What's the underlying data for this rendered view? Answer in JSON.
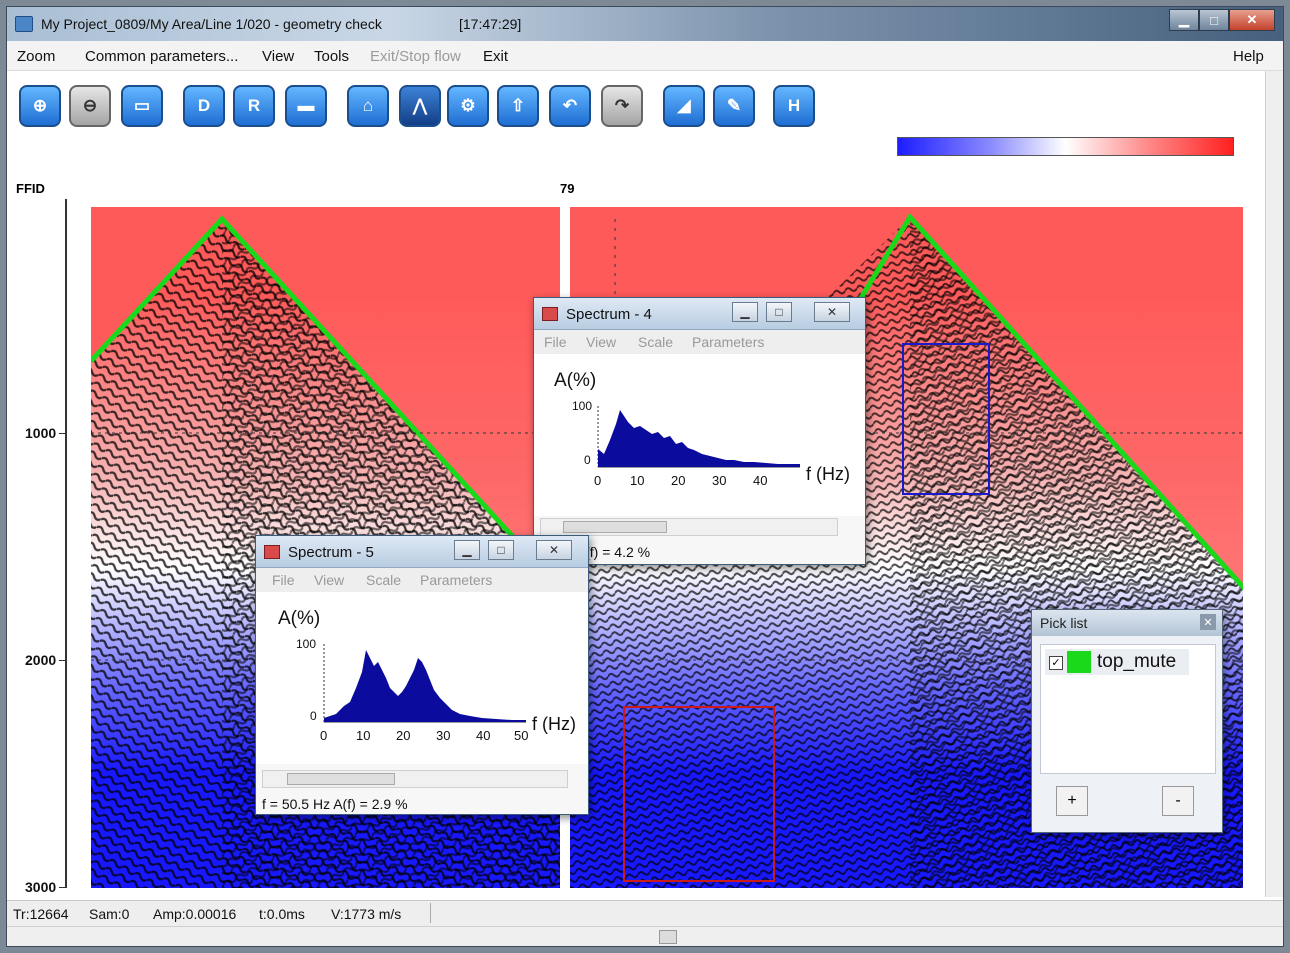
{
  "window": {
    "title": "My Project_0809/My Area/Line 1/020 - geometry check",
    "time": "[17:47:29]",
    "controls": {
      "minimize": "▁",
      "maximize": "□",
      "close": "✕"
    }
  },
  "menu": {
    "zoom": "Zoom",
    "common_parameters": "Common parameters...",
    "view": "View",
    "tools": "Tools",
    "exit_stop_flow": "Exit/Stop flow",
    "exit": "Exit",
    "help": "Help"
  },
  "toolbar": {
    "tools": [
      {
        "icon": "zoom-in-icon",
        "glyph": "⊕"
      },
      {
        "icon": "zoom-out-icon",
        "glyph": "⊖"
      },
      {
        "icon": "fit-view-icon",
        "glyph": "▭"
      },
      {
        "icon": "d-icon",
        "glyph": "D"
      },
      {
        "icon": "r-icon",
        "glyph": "R"
      },
      {
        "icon": "ruler-icon",
        "glyph": "▬"
      },
      {
        "icon": "pick-icon",
        "glyph": "⌂"
      },
      {
        "icon": "curve-icon",
        "glyph": "⋀"
      },
      {
        "icon": "gear-pick-icon",
        "glyph": "⚙"
      },
      {
        "icon": "pick-up-icon",
        "glyph": "⇧"
      },
      {
        "icon": "undo-icon",
        "glyph": "↶"
      },
      {
        "icon": "redo-icon",
        "glyph": "↷"
      },
      {
        "icon": "spectrum-icon",
        "glyph": "◢"
      },
      {
        "icon": "edit-icon",
        "glyph": "✎"
      },
      {
        "icon": "h-icon",
        "glyph": "H"
      }
    ]
  },
  "plot": {
    "ffid_label": "FFID",
    "ffid_value": "79",
    "y_ticks": [
      "1000",
      "2000",
      "3000"
    ],
    "colorbar": {
      "low": "#1d1dff",
      "mid": "#ffffff",
      "high": "#ff2020"
    },
    "mute_line_color": "#1ad81a",
    "box_blue": "#1a1acc",
    "box_red": "#cc1a1a"
  },
  "spectrum4": {
    "title": "Spectrum - 4",
    "menu": [
      "File",
      "View",
      "Scale",
      "Parameters"
    ],
    "y_label": "A(%)",
    "x_label": "f (Hz)",
    "y_ticks": [
      "100",
      "0"
    ],
    "x_ticks": [
      "0",
      "10",
      "20",
      "30",
      "40"
    ],
    "status": ".8 Hz  A(f) =    4.2 %",
    "fill_color": "#0b0b9e"
  },
  "spectrum5": {
    "title": "Spectrum - 5",
    "menu": [
      "File",
      "View",
      "Scale",
      "Parameters"
    ],
    "y_label": "A(%)",
    "x_label": "f (Hz)",
    "y_ticks": [
      "100",
      "0"
    ],
    "x_ticks": [
      "0",
      "10",
      "20",
      "30",
      "40",
      "50"
    ],
    "status": "f =  50.5 Hz   A(f) =    2.9 %",
    "fill_color": "#0b0b9e"
  },
  "picklist": {
    "title": "Pick list",
    "item_label": "top_mute",
    "item_color": "#1ad81a",
    "checked": true,
    "add_label": "+",
    "remove_label": "-"
  },
  "status": {
    "trace": "Tr:12664",
    "sample": "Sam:0",
    "amplitude": "Amp:0.00016",
    "time": "t:0.0ms",
    "velocity": "V:1773 m/s"
  }
}
